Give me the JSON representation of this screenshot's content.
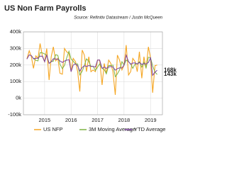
{
  "chart_data": {
    "type": "line",
    "title": "US Non Farm Payrolls",
    "subtitle": "Source: Refinitiv Datastream / Justin McQueen",
    "x": [
      2014.33,
      2014.42,
      2014.5,
      2014.58,
      2014.67,
      2014.75,
      2014.83,
      2014.92,
      2015,
      2015.08,
      2015.17,
      2015.25,
      2015.33,
      2015.42,
      2015.5,
      2015.58,
      2015.67,
      2015.75,
      2015.83,
      2015.92,
      2016,
      2016.08,
      2016.17,
      2016.25,
      2016.33,
      2016.42,
      2016.5,
      2016.58,
      2016.67,
      2016.75,
      2016.83,
      2016.92,
      2017,
      2017.08,
      2017.17,
      2017.25,
      2017.33,
      2017.42,
      2017.5,
      2017.58,
      2017.67,
      2017.75,
      2017.83,
      2017.92,
      2018,
      2018.08,
      2018.17,
      2018.25,
      2018.33,
      2018.42,
      2018.5,
      2018.58,
      2018.67,
      2018.75,
      2018.83,
      2018.92,
      2019,
      2019.08,
      2019.17,
      2019.25
    ],
    "series": [
      {
        "name": "US NFP",
        "color": "#f5a623",
        "values": [
          236,
          286,
          250,
          180,
          255,
          240,
          330,
          250,
          220,
          300,
          110,
          250,
          310,
          225,
          240,
          150,
          145,
          300,
          280,
          270,
          160,
          240,
          220,
          160,
          40,
          290,
          260,
          160,
          250,
          160,
          170,
          160,
          230,
          230,
          80,
          210,
          150,
          230,
          210,
          160,
          20,
          260,
          230,
          170,
          200,
          320,
          140,
          160,
          240,
          220,
          160,
          280,
          120,
          250,
          180,
          310,
          243,
          33,
          196,
          200
        ]
      },
      {
        "name": "3M Moving Average",
        "color": "#7cb342",
        "values": [
          null,
          null,
          257,
          239,
          228,
          225,
          275,
          273,
          267,
          257,
          210,
          220,
          223,
          262,
          258,
          205,
          178,
          198,
          242,
          283,
          237,
          223,
          207,
          207,
          140,
          163,
          197,
          237,
          223,
          190,
          193,
          167,
          187,
          207,
          180,
          173,
          147,
          197,
          197,
          200,
          130,
          147,
          170,
          220,
          200,
          230,
          220,
          207,
          180,
          207,
          207,
          220,
          187,
          217,
          183,
          247,
          244,
          195,
          157,
          143
        ]
      },
      {
        "name": "YTD Average",
        "color": "#7b3f9e",
        "values": [
          236,
          261,
          257,
          238,
          241,
          241,
          254,
          253,
          220,
          260,
          210,
          220,
          238,
          236,
          236,
          225,
          216,
          224,
          229,
          232,
          160,
          200,
          207,
          195,
          164,
          185,
          196,
          191,
          197,
          193,
          191,
          188,
          230,
          230,
          180,
          188,
          180,
          188,
          191,
          188,
          169,
          178,
          183,
          182,
          200,
          260,
          220,
          205,
          212,
          213,
          206,
          215,
          204,
          209,
          206,
          215,
          243,
          138,
          157,
          168
        ]
      }
    ],
    "annotations": [
      {
        "value": 168,
        "label": "168k",
        "color": "#7b3f9e"
      },
      {
        "value": 143,
        "label": "143k",
        "color": "#7cb342"
      }
    ],
    "xlim": [
      2014.2,
      2019.45
    ],
    "xticks": [
      2015,
      2016,
      2017,
      2018,
      2019
    ],
    "ylim": [
      -100,
      400
    ],
    "yticks": [
      {
        "value": -100,
        "label": "-100k"
      },
      {
        "value": 0,
        "label": "0k"
      },
      {
        "value": 100,
        "label": "100k"
      },
      {
        "value": 200,
        "label": "200k"
      },
      {
        "value": 300,
        "label": "300k"
      },
      {
        "value": 400,
        "label": "400k"
      }
    ],
    "grid": true
  }
}
